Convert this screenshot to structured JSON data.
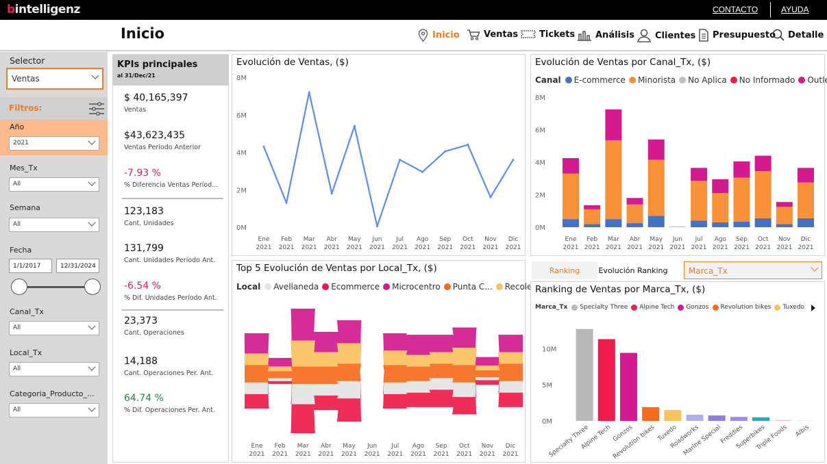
{
  "brand": {
    "logo_b": "b",
    "logo_rest": "intelligenz"
  },
  "toplinks": {
    "contacto": "CONTACTO",
    "ayuda": "AYUDA"
  },
  "page_title": "Inicio",
  "nav": [
    {
      "label": "Inicio",
      "icon": "location-pin-icon",
      "active": true
    },
    {
      "label": "Ventas",
      "icon": "cart-icon",
      "active": false
    },
    {
      "label": "Tickets",
      "icon": "ticket-icon",
      "active": false
    },
    {
      "label": "Análisis",
      "icon": "bar-chart-icon",
      "active": false
    },
    {
      "label": "Clientes",
      "icon": "person-icon",
      "active": false
    },
    {
      "label": "Presupuesto",
      "icon": "document-icon",
      "active": false
    },
    {
      "label": "Detalle",
      "icon": "search-icon",
      "active": false
    }
  ],
  "sidebar": {
    "selector_label": "Selector",
    "selector_value": "Ventas",
    "filtros_label": "Filtros:",
    "anio": {
      "label": "Año",
      "value": "2021"
    },
    "mes": {
      "label": "Mes_Tx",
      "value": "All"
    },
    "semana": {
      "label": "Semana",
      "value": "All"
    },
    "fecha": {
      "label": "Fecha",
      "from": "1/1/2017",
      "to": "12/31/2024"
    },
    "canal": {
      "label": "Canal_Tx",
      "value": "All"
    },
    "local": {
      "label": "Local_Tx",
      "value": "All"
    },
    "categoria": {
      "label": "Categoria_Producto_...",
      "value": "All"
    }
  },
  "kpis": {
    "title": "KPIs principales",
    "subtitle": "al 31/Dec/21",
    "items": [
      {
        "value": "$ 40,165,397",
        "label": "Ventas",
        "color": "#111111"
      },
      {
        "value": "$43,623,435",
        "label": "Ventas Período Anterior",
        "color": "#111111"
      },
      {
        "value": "-7.93 %",
        "label": "% Diferencia Ventas Períod...",
        "color": "#d6254f"
      },
      {
        "value": "123,183",
        "label": "Cant. Unidades",
        "color": "#111111"
      },
      {
        "value": "131,799",
        "label": "Cant. Unidades Período Ant.",
        "color": "#111111"
      },
      {
        "value": "-6.54 %",
        "label": "% Dif. Unidades Período Ant.",
        "color": "#d6254f"
      },
      {
        "value": "23,373",
        "label": "Cant. Operaciones",
        "color": "#111111"
      },
      {
        "value": "14,188",
        "label": "Cant. Operaciones Per. Ant.",
        "color": "#111111"
      },
      {
        "value": "64.74 %",
        "label": "% Dif. Operaciones Per. Ant.",
        "color": "#1f8a3c"
      }
    ]
  },
  "ranking_tabs": {
    "ranking": "Ranking",
    "evolucion": "Evolución Ranking",
    "dropdown": "Marca_Tx"
  },
  "colors": {
    "accent": "#f07c22",
    "line": "#5b8ee6",
    "ecommerce": "#4472c4",
    "minorista": "#f9913a",
    "noaplica": "#c0c0c0",
    "noinformado": "#ee1b4b",
    "outlet": "#d31a8f"
  },
  "chart_data": [
    {
      "type": "line",
      "title": "Evolución de Ventas, ($)",
      "categories": [
        "Ene 2021",
        "Feb 2021",
        "Mar 2021",
        "Abr 2021",
        "May 2021",
        "Jun 2021",
        "Jul 2021",
        "Ago 2021",
        "Sep 2021",
        "Oct 2021",
        "Nov 2021",
        "Dic 2021"
      ],
      "values": [
        4.3,
        1.3,
        7.2,
        1.8,
        5.4,
        0.05,
        3.6,
        2.95,
        4.05,
        4.4,
        1.6,
        3.6
      ],
      "yticks": [
        "0M",
        "2M",
        "4M",
        "6M",
        "8M"
      ],
      "ylim": [
        0,
        8
      ]
    },
    {
      "type": "bar",
      "title": "Evolución de Ventas por Canal_Tx, ($)",
      "legend_title": "Canal",
      "categories": [
        "Ene 2021",
        "Feb 2021",
        "Mar 2021",
        "Abr 2021",
        "May 2021",
        "Jun 2021",
        "Jul 2021",
        "Ago 2021",
        "Sep 2021",
        "Oct 2021",
        "Nov 2021",
        "Dic 2021"
      ],
      "series": [
        {
          "name": "E-commerce",
          "values": [
            0.5,
            0.2,
            0.5,
            0.25,
            0.7,
            0.0,
            0.4,
            0.3,
            0.35,
            0.55,
            0.2,
            0.55
          ]
        },
        {
          "name": "Minorista",
          "values": [
            2.8,
            0.9,
            4.85,
            1.15,
            3.45,
            0.0,
            2.45,
            1.8,
            2.7,
            2.9,
            1.05,
            2.2
          ]
        },
        {
          "name": "No Aplica",
          "values": [
            0.0,
            0.0,
            0.0,
            0.0,
            0.0,
            0.05,
            0.0,
            0.0,
            0.0,
            0.0,
            0.0,
            0.0
          ]
        },
        {
          "name": "No Informado",
          "values": [
            0.0,
            0.0,
            0.0,
            0.0,
            0.0,
            0.0,
            0.0,
            0.0,
            0.0,
            0.0,
            0.0,
            0.0
          ]
        },
        {
          "name": "Outlet",
          "values": [
            0.95,
            0.25,
            1.9,
            0.4,
            1.25,
            0.0,
            0.8,
            0.85,
            1.0,
            0.95,
            0.3,
            0.9
          ]
        }
      ],
      "yticks": [
        "0M",
        "2M",
        "4M",
        "6M",
        "8M"
      ],
      "ylim": [
        0,
        8
      ]
    },
    {
      "type": "area",
      "title": "Top 5 Evolución de Ventas por Local_Tx, ($)",
      "legend_title": "Local",
      "categories": [
        "Ene 2021",
        "Feb 2021",
        "Mar 2021",
        "Abr 2021",
        "May 2021",
        "Jun 2021",
        "Jul 2021",
        "Ago 2021",
        "Sep 2021",
        "Oct 2021",
        "Nov 2021",
        "Dic 2021"
      ],
      "series": [
        {
          "name": "Avellaneda",
          "values": [
            0.2,
            0.05,
            0.35,
            0.2,
            0.3,
            0.0,
            0.2,
            0.2,
            0.2,
            0.25,
            0.05,
            0.2
          ]
        },
        {
          "name": "Ecommerce",
          "values": [
            0.25,
            0.05,
            0.5,
            0.25,
            0.4,
            0.0,
            0.25,
            0.25,
            0.3,
            0.3,
            0.08,
            0.25
          ]
        },
        {
          "name": "Microcentro",
          "values": [
            0.35,
            0.15,
            0.55,
            0.35,
            0.4,
            0.0,
            0.3,
            0.35,
            0.3,
            0.35,
            0.15,
            0.3
          ]
        },
        {
          "name": "Punta C...",
          "values": [
            0.3,
            0.12,
            0.3,
            0.3,
            0.3,
            0.0,
            0.3,
            0.25,
            0.25,
            0.3,
            0.12,
            0.3
          ]
        },
        {
          "name": "Recoleta",
          "values": [
            0.2,
            0.08,
            0.45,
            0.25,
            0.35,
            0.0,
            0.25,
            0.2,
            0.2,
            0.3,
            0.08,
            0.2
          ]
        }
      ]
    },
    {
      "type": "bar",
      "title": "Ranking de Ventas por Marca_Tx, ($)",
      "legend_title": "Marca_Tx",
      "legend": [
        "Specialty Three",
        "Alpine Tech",
        "Gonzos",
        "Revolution bikes",
        "Tuxedo"
      ],
      "categories": [
        "Specialty Three",
        "Alpine Tech",
        "Gonzos",
        "Revolution bikes",
        "Tuxedo",
        "Roadworks",
        "Marine Special",
        "Freddies",
        "Superbikes",
        "Triple Foods",
        "Albis"
      ],
      "values": [
        12.7,
        11.3,
        9.4,
        1.9,
        1.5,
        0.85,
        0.75,
        0.55,
        0.5,
        0.1,
        0.05
      ],
      "bar_colors": [
        "#b8b8b8",
        "#ee1b4b",
        "#d31a8f",
        "#f76b1c",
        "#fbc15e",
        "#b0b0e8",
        "#8c7de0",
        "#9a8af0",
        "#3aa0bf",
        "#f3b8c8",
        "#dddddd"
      ],
      "yticks": [
        "0M",
        "5M",
        "10M"
      ],
      "ylim": [
        0,
        14
      ]
    }
  ]
}
